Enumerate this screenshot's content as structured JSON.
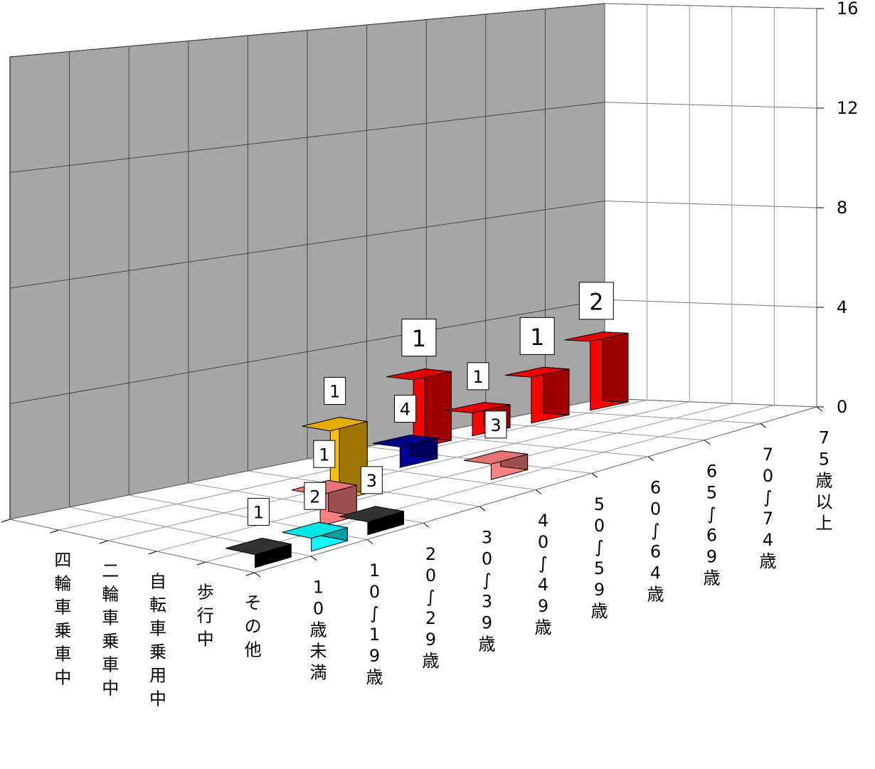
{
  "chart_data": {
    "type": "bar",
    "subtype": "3d-grouped",
    "title": "",
    "zlim": [
      0,
      16
    ],
    "z_ticks": [
      "0",
      "4",
      "8",
      "12",
      "16"
    ],
    "series_axis_labels": [
      "四輪車乗車中",
      "二輪車乗車中",
      "自転車乗用中",
      "歩行中",
      "その他"
    ],
    "category_axis_labels": [
      "10歳未満",
      "10〜19歳",
      "20〜29歳",
      "30〜39歳",
      "40〜49歳",
      "50〜59歳",
      "60〜64歳",
      "65〜69歳",
      "70〜74歳",
      "75歳以上"
    ],
    "series": [
      {
        "name": "四輪車乗車中",
        "color": "#ff0000",
        "values": [
          null,
          null,
          null,
          null,
          null,
          null,
          3,
          1,
          2,
          3
        ]
      },
      {
        "name": "二輪車乗車中",
        "color": "#000099",
        "values": [
          null,
          null,
          null,
          null,
          null,
          1,
          null,
          null,
          null,
          null
        ]
      },
      {
        "name": "自転車乗用中",
        "color": "#ffc000",
        "values": [
          null,
          null,
          null,
          4,
          null,
          null,
          null,
          null,
          null,
          null
        ]
      },
      {
        "name": "歩行中",
        "color": "#ff8080",
        "values": [
          null,
          null,
          2,
          null,
          null,
          1,
          null,
          null,
          null,
          null
        ]
      },
      {
        "name": "その他",
        "color": "#00ffff",
        "values": [
          null,
          1,
          null,
          null,
          null,
          null,
          null,
          null,
          null,
          null
        ]
      },
      {
        "name": "その他",
        "color": "#000000",
        "values": [
          1,
          null,
          1,
          null,
          null,
          null,
          null,
          null,
          null,
          null
        ]
      }
    ],
    "data_labels": [
      "1",
      "1",
      "1",
      "2",
      "4",
      "1",
      "1",
      "3",
      "1",
      "2",
      "3"
    ],
    "wall_color": "#a6a6a6",
    "grid": true
  }
}
